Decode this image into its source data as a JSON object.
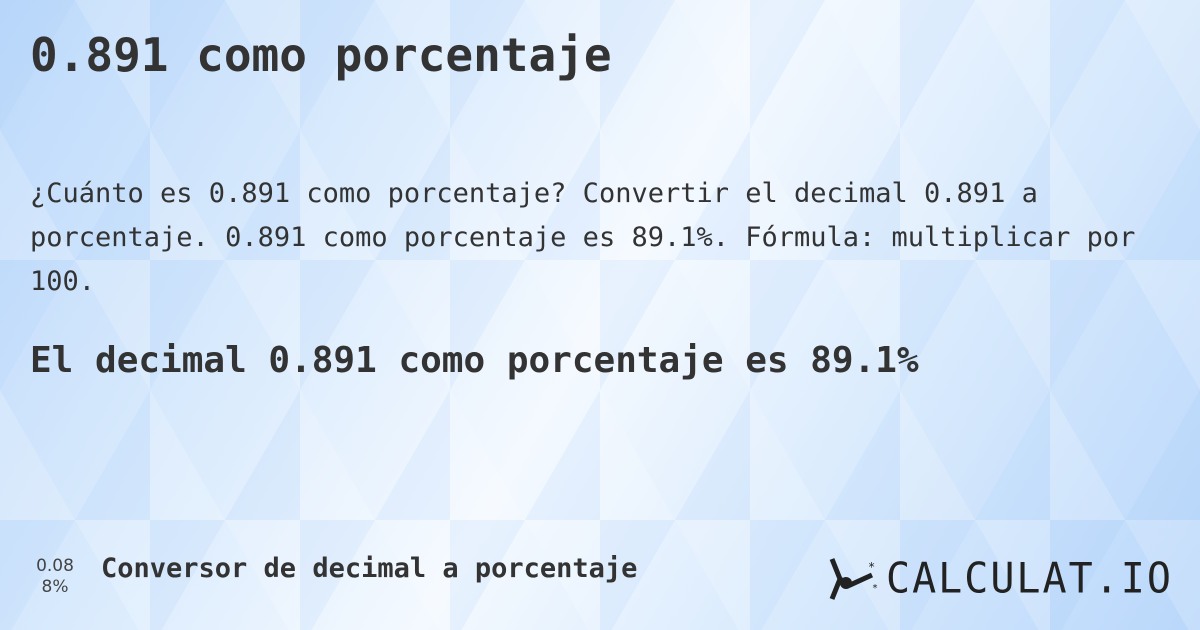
{
  "title": "0.891 como porcentaje",
  "description": "¿Cuánto es 0.891 como porcentaje? Convertir el decimal 0.891 a porcentaje. 0.891 como porcentaje es 89.1%. Fórmula: multiplicar por 100.",
  "result": "El decimal 0.891 como porcentaje es 89.1%",
  "footer": {
    "icon_top": "0.08",
    "icon_bottom": "8%",
    "link": "Conversor de decimal a porcentaje",
    "logo": "CALCULAT.IO"
  }
}
